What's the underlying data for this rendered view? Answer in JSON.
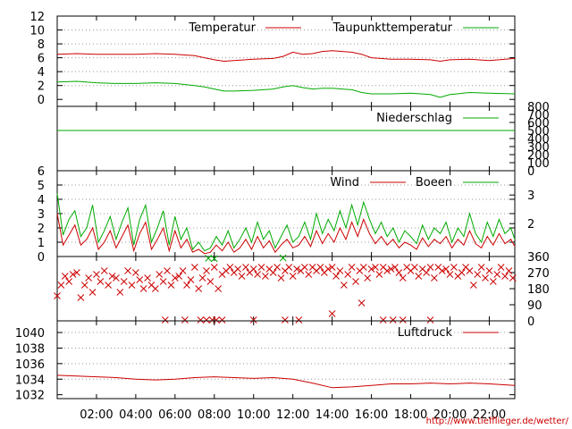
{
  "colors": {
    "red": "#cc0000",
    "green": "#00aa00",
    "grid": "#999999"
  },
  "footer": "http://www.tiefflieger.de/wetter/",
  "chart_data": {
    "x_ticks": [
      "02:00",
      "04:00",
      "06:00",
      "08:00",
      "10:00",
      "12:00",
      "14:00",
      "16:00",
      "18:00",
      "20:00",
      "22:00"
    ],
    "x_hours_range": [
      0,
      23.3
    ],
    "panels": [
      {
        "id": "temperature",
        "type": "line",
        "ylim": [
          -1,
          12
        ],
        "left_ticks": [
          0,
          2,
          4,
          6,
          8,
          10,
          12
        ],
        "right_ticks": [],
        "grid_y": [
          2,
          4,
          6,
          8,
          10
        ],
        "legend": [
          "Temperatur",
          "Taupunkttemperatur"
        ],
        "series": [
          {
            "name": "Temperatur",
            "color": "red",
            "x": [
              0,
              1,
              2,
              3,
              4,
              5,
              6,
              7,
              7.5,
              8,
              8.5,
              9,
              10,
              11,
              11.5,
              12,
              12.5,
              13,
              13.5,
              14,
              14.5,
              15,
              15.5,
              16,
              17,
              18,
              19,
              19.5,
              20,
              21,
              22,
              23.3
            ],
            "y": [
              6.5,
              6.6,
              6.5,
              6.5,
              6.5,
              6.6,
              6.5,
              6.3,
              6.0,
              5.7,
              5.5,
              5.6,
              5.8,
              5.9,
              6.2,
              6.8,
              6.5,
              6.6,
              6.9,
              7.0,
              6.9,
              6.8,
              6.5,
              6.0,
              5.8,
              5.8,
              5.7,
              5.5,
              5.7,
              5.8,
              5.6,
              5.9
            ]
          },
          {
            "name": "Taupunkttemperatur",
            "color": "green",
            "x": [
              0,
              1,
              2,
              3,
              4,
              5,
              6,
              7,
              7.5,
              8,
              8.5,
              9,
              10,
              11,
              11.5,
              12,
              12.5,
              13,
              13.5,
              14,
              14.5,
              15,
              15.5,
              16,
              17,
              18,
              19,
              19.5,
              20,
              21,
              22,
              23.3
            ],
            "y": [
              2.5,
              2.6,
              2.4,
              2.3,
              2.3,
              2.4,
              2.3,
              2.0,
              1.8,
              1.5,
              1.2,
              1.2,
              1.3,
              1.5,
              1.8,
              2.0,
              1.7,
              1.5,
              1.6,
              1.6,
              1.5,
              1.4,
              1.0,
              0.8,
              0.8,
              0.9,
              0.7,
              0.3,
              0.7,
              1.0,
              0.9,
              0.8
            ]
          }
        ]
      },
      {
        "id": "precipitation",
        "type": "line",
        "ylim": [
          0,
          800
        ],
        "left_ticks": [],
        "right_ticks": [
          0,
          100,
          200,
          300,
          400,
          500,
          600,
          700,
          800
        ],
        "grid_y": [],
        "legend": [
          "Niederschlag"
        ],
        "series": [
          {
            "name": "Niederschlag",
            "color": "green",
            "x": [
              0,
              23.3
            ],
            "y": [
              500,
              500
            ]
          }
        ]
      },
      {
        "id": "wind",
        "type": "line",
        "ylim": [
          0,
          6
        ],
        "left_ticks": [
          0,
          1,
          2,
          3,
          4,
          5,
          6
        ],
        "right_ticks": [
          2,
          3
        ],
        "right_tick_pos": [
          2.3,
          4.3
        ],
        "grid_y": [
          1,
          2,
          3,
          4,
          5
        ],
        "legend": [
          "Wind",
          "Boeen"
        ],
        "series": [
          {
            "name": "Wind",
            "color": "red",
            "x": [
              0,
              0.3,
              0.6,
              0.9,
              1.2,
              1.5,
              1.8,
              2.1,
              2.4,
              2.7,
              3.0,
              3.3,
              3.6,
              3.9,
              4.2,
              4.5,
              4.8,
              5.1,
              5.4,
              5.7,
              6.0,
              6.3,
              6.6,
              6.9,
              7.2,
              7.5,
              7.8,
              8.1,
              8.4,
              8.7,
              9.0,
              9.3,
              9.6,
              9.9,
              10.2,
              10.5,
              10.8,
              11.1,
              11.4,
              11.7,
              12.0,
              12.3,
              12.6,
              12.9,
              13.2,
              13.5,
              13.8,
              14.1,
              14.4,
              14.7,
              15.0,
              15.3,
              15.6,
              15.9,
              16.2,
              16.5,
              16.8,
              17.1,
              17.4,
              17.7,
              18.0,
              18.3,
              18.6,
              18.9,
              19.2,
              19.5,
              19.8,
              20.1,
              20.4,
              20.7,
              21.0,
              21.3,
              21.6,
              21.9,
              22.2,
              22.5,
              22.8,
              23.1,
              23.3
            ],
            "y": [
              3.0,
              0.8,
              1.5,
              2.2,
              0.8,
              1.2,
              2.0,
              0.5,
              1.0,
              1.8,
              0.6,
              1.4,
              2.2,
              0.4,
              1.6,
              2.4,
              0.5,
              1.2,
              2.0,
              0.4,
              1.8,
              0.6,
              1.2,
              0.3,
              0.5,
              0.2,
              0.3,
              0.8,
              0.4,
              1.0,
              0.3,
              0.6,
              1.2,
              0.5,
              1.4,
              0.6,
              1.1,
              0.3,
              0.8,
              1.2,
              0.6,
              0.8,
              1.4,
              0.7,
              1.8,
              0.9,
              1.6,
              1.0,
              2.0,
              1.2,
              2.4,
              1.4,
              2.6,
              1.6,
              0.9,
              1.4,
              0.8,
              1.2,
              0.6,
              1.0,
              0.8,
              0.5,
              1.3,
              0.7,
              1.2,
              0.9,
              1.4,
              0.6,
              1.2,
              0.8,
              1.8,
              0.9,
              0.6,
              1.4,
              0.8,
              1.6,
              0.9,
              1.2,
              0.7
            ]
          },
          {
            "name": "Boeen",
            "color": "green",
            "x": [
              0,
              0.3,
              0.6,
              0.9,
              1.2,
              1.5,
              1.8,
              2.1,
              2.4,
              2.7,
              3.0,
              3.3,
              3.6,
              3.9,
              4.2,
              4.5,
              4.8,
              5.1,
              5.4,
              5.7,
              6.0,
              6.3,
              6.6,
              6.9,
              7.2,
              7.5,
              7.8,
              8.1,
              8.4,
              8.7,
              9.0,
              9.3,
              9.6,
              9.9,
              10.2,
              10.5,
              10.8,
              11.1,
              11.4,
              11.7,
              12.0,
              12.3,
              12.6,
              12.9,
              13.2,
              13.5,
              13.8,
              14.1,
              14.4,
              14.7,
              15.0,
              15.3,
              15.6,
              15.9,
              16.2,
              16.5,
              16.8,
              17.1,
              17.4,
              17.7,
              18.0,
              18.3,
              18.6,
              18.9,
              19.2,
              19.5,
              19.8,
              20.1,
              20.4,
              20.7,
              21.0,
              21.3,
              21.6,
              21.9,
              22.2,
              22.5,
              22.8,
              23.1,
              23.3
            ],
            "y": [
              4.4,
              1.5,
              2.6,
              3.2,
              1.4,
              2.0,
              3.6,
              1.0,
              1.8,
              2.8,
              1.2,
              2.4,
              3.4,
              0.8,
              2.6,
              3.6,
              1.0,
              2.0,
              3.2,
              0.8,
              2.8,
              1.2,
              2.0,
              0.5,
              1.0,
              0.4,
              0.6,
              1.4,
              0.8,
              1.8,
              0.6,
              1.2,
              2.0,
              1.0,
              2.4,
              1.2,
              1.8,
              0.6,
              1.4,
              2.2,
              1.0,
              1.4,
              2.4,
              1.2,
              3.0,
              1.6,
              2.6,
              1.8,
              3.2,
              2.0,
              3.6,
              2.2,
              3.8,
              2.6,
              1.6,
              2.4,
              1.4,
              2.0,
              1.0,
              1.8,
              1.4,
              0.9,
              2.2,
              1.2,
              2.0,
              1.6,
              2.4,
              1.0,
              2.0,
              1.4,
              3.0,
              1.6,
              1.0,
              2.4,
              1.4,
              2.6,
              1.6,
              2.0,
              1.2
            ]
          }
        ]
      },
      {
        "id": "wind-direction",
        "type": "scatter",
        "ylim": [
          0,
          360
        ],
        "left_ticks": [],
        "right_ticks": [
          0,
          90,
          180,
          270,
          360
        ],
        "grid_y": [],
        "legend": [],
        "series": [
          {
            "name": "",
            "color": "red",
            "x": [
              0,
              0.2,
              0.4,
              0.6,
              0.8,
              1.0,
              1.2,
              1.4,
              1.6,
              1.8,
              2.0,
              2.2,
              2.4,
              2.6,
              2.8,
              3.0,
              3.2,
              3.4,
              3.6,
              3.8,
              4.0,
              4.2,
              4.4,
              4.6,
              4.8,
              5.0,
              5.2,
              5.4,
              5.6,
              5.8,
              6.0,
              6.2,
              6.4,
              6.6,
              6.8,
              7.0,
              7.2,
              7.4,
              7.6,
              7.8,
              8.0,
              8.2,
              8.4,
              8.6,
              8.8,
              9.0,
              9.2,
              9.4,
              9.6,
              9.8,
              10.0,
              10.2,
              10.4,
              10.6,
              10.8,
              11.0,
              11.2,
              11.4,
              11.6,
              11.8,
              12.0,
              12.2,
              12.4,
              12.6,
              12.8,
              13.0,
              13.2,
              13.4,
              13.6,
              13.8,
              14.0,
              14.2,
              14.4,
              14.6,
              14.8,
              15.0,
              15.2,
              15.4,
              15.6,
              15.8,
              16.0,
              16.2,
              16.4,
              16.6,
              16.8,
              17.0,
              17.2,
              17.4,
              17.6,
              17.8,
              18.0,
              18.2,
              18.4,
              18.6,
              18.8,
              19.0,
              19.2,
              19.4,
              19.6,
              19.8,
              20.0,
              20.2,
              20.4,
              20.6,
              20.8,
              21.0,
              21.2,
              21.4,
              21.6,
              21.8,
              22.0,
              22.2,
              22.4,
              22.6,
              22.8,
              23.0,
              23.2,
              5.5,
              6.5,
              7.3,
              7.6,
              7.9,
              8.1,
              8.4,
              10.0,
              11.6,
              12.3,
              16.6,
              17.1,
              17.6,
              19.0,
              14.0,
              15.5
            ],
            "y": [
              140,
              200,
              250,
              220,
              260,
              270,
              130,
              200,
              240,
              160,
              260,
              220,
              280,
              200,
              250,
              240,
              160,
              220,
              280,
              200,
              270,
              230,
              180,
              240,
              200,
              180,
              260,
              220,
              280,
              200,
              240,
              250,
              280,
              200,
              230,
              300,
              180,
              240,
              280,
              220,
              300,
              180,
              260,
              280,
              300,
              270,
              290,
              250,
              300,
              270,
              290,
              260,
              300,
              250,
              290,
              270,
              300,
              240,
              280,
              300,
              250,
              290,
              280,
              300,
              260,
              300,
              280,
              300,
              270,
              290,
              300,
              250,
              280,
              200,
              260,
              300,
              220,
              280,
              300,
              240,
              290,
              300,
              260,
              300,
              280,
              290,
              300,
              270,
              240,
              300,
              280,
              300,
              250,
              290,
              270,
              300,
              240,
              300,
              280,
              290,
              260,
              300,
              250,
              270,
              300,
              280,
              200,
              260,
              300,
              240,
              280,
              220,
              260,
              300,
              250,
              280,
              240,
              5,
              5,
              5,
              5,
              5,
              5,
              5,
              5,
              5,
              5,
              5,
              5,
              5,
              5,
              40,
              100
            ]
          },
          {
            "name": "",
            "color": "green",
            "x": [
              7.7,
              8.0,
              11.5
            ],
            "y": [
              350,
              348,
              352
            ]
          }
        ]
      },
      {
        "id": "pressure",
        "type": "line",
        "ylim": [
          1031.5,
          1041.5
        ],
        "left_ticks": [
          1032,
          1034,
          1036,
          1038,
          1040
        ],
        "right_ticks": [],
        "grid_y": [
          1034,
          1036,
          1038,
          1040
        ],
        "legend": [
          "Luftdruck"
        ],
        "series": [
          {
            "name": "Luftdruck",
            "color": "red",
            "x": [
              0,
              1,
              2,
              3,
              4,
              5,
              6,
              7,
              8,
              9,
              10,
              11,
              12,
              13,
              14,
              15,
              16,
              17,
              18,
              19,
              20,
              21,
              22,
              23.3
            ],
            "y": [
              1034.5,
              1034.4,
              1034.3,
              1034.2,
              1034.0,
              1033.9,
              1034.0,
              1034.2,
              1034.3,
              1034.2,
              1034.1,
              1034.2,
              1034.0,
              1033.5,
              1032.9,
              1033.0,
              1033.2,
              1033.4,
              1033.4,
              1033.5,
              1033.4,
              1033.5,
              1033.4,
              1033.2
            ]
          }
        ]
      }
    ]
  }
}
